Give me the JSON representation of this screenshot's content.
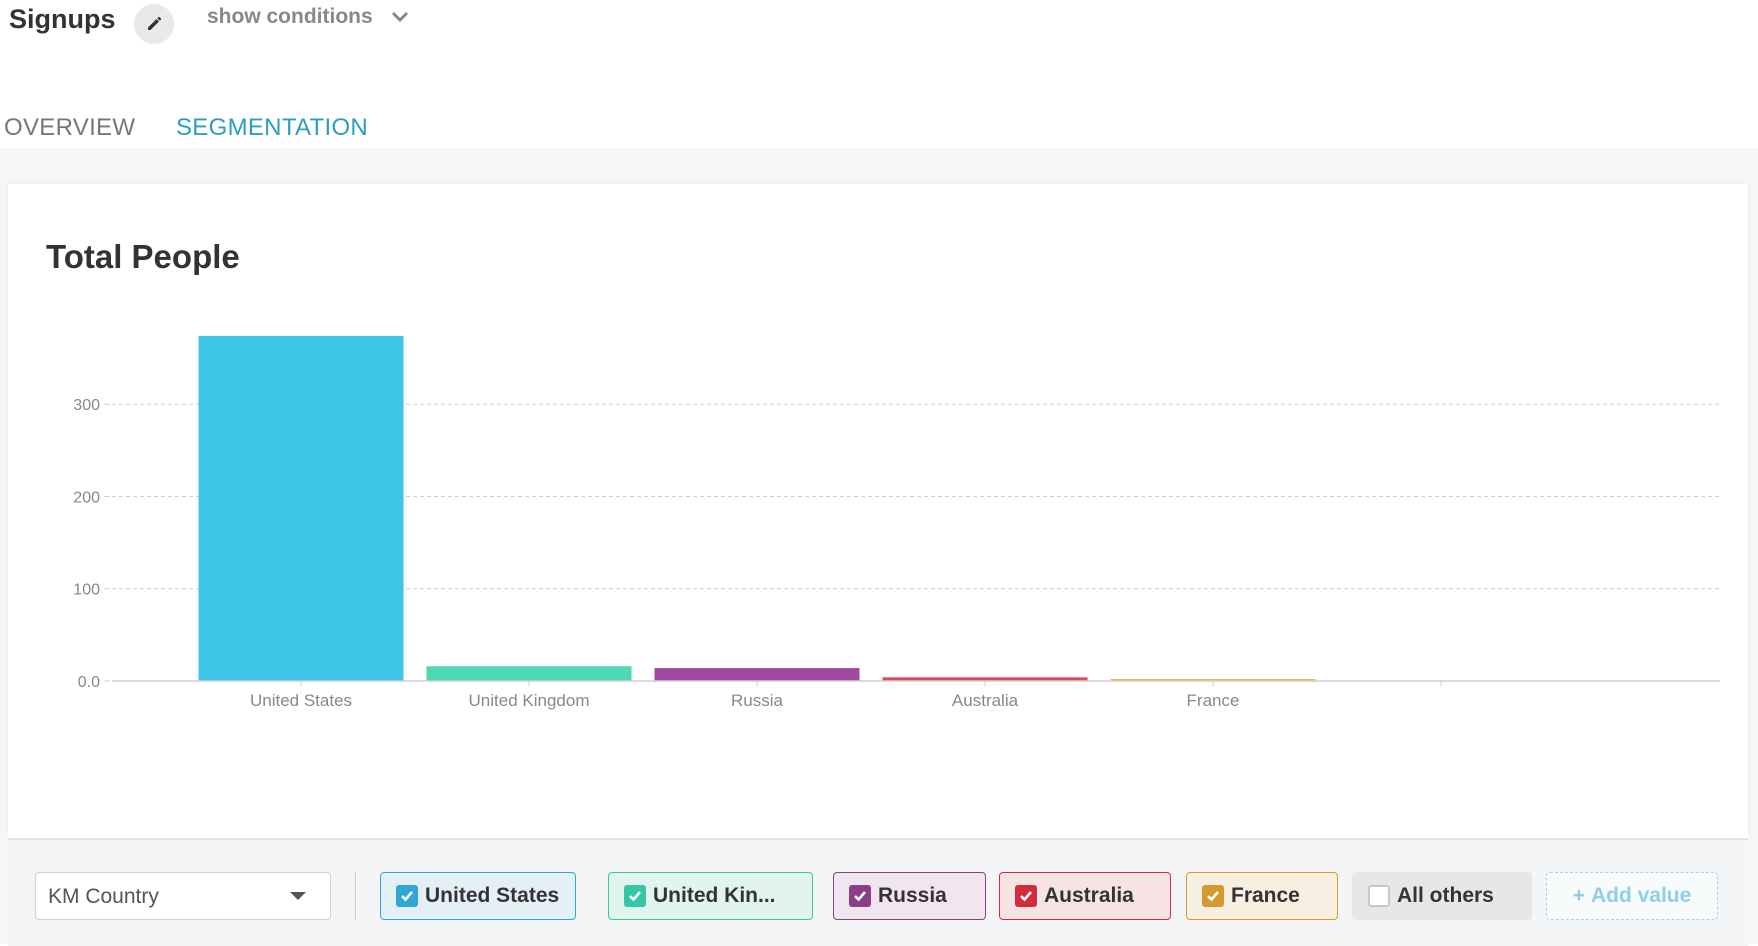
{
  "header": {
    "title": "Signups",
    "conditions_label": "show conditions"
  },
  "tabs": [
    {
      "label": "OVERVIEW",
      "active": false
    },
    {
      "label": "SEGMENTATION",
      "active": true
    }
  ],
  "card": {
    "title": "Total People"
  },
  "chart_data": {
    "type": "bar",
    "title": "Total People",
    "categories": [
      "United States",
      "United Kingdom",
      "Russia",
      "Australia",
      "France"
    ],
    "values": [
      374,
      16,
      14,
      4,
      1
    ],
    "colors": [
      "#3ec4e6",
      "#4fd8b5",
      "#a2489e",
      "#e04a57",
      "#f1b545"
    ],
    "yticks": [
      "0.0",
      "100",
      "200",
      "300"
    ],
    "ylim": [
      0,
      375
    ],
    "grid": true,
    "xlabel": "",
    "ylabel": ""
  },
  "footer": {
    "segment_select": "KM Country",
    "chips": [
      {
        "label": "United States",
        "checked": true,
        "color": "#2fa9d4",
        "bg": "#e3f1f7"
      },
      {
        "label": "United Kin...",
        "checked": true,
        "color": "#33c7a4",
        "bg": "#e2f4ee"
      },
      {
        "label": "Russia",
        "checked": true,
        "color": "#8b3f88",
        "bg": "#f1e6f0"
      },
      {
        "label": "Australia",
        "checked": true,
        "color": "#d12c3a",
        "bg": "#f7e3e4"
      },
      {
        "label": "France",
        "checked": true,
        "color": "#d49a2f",
        "bg": "#f7efe0"
      },
      {
        "label": "All others",
        "checked": false,
        "color": "#c8c8c8",
        "bg": "#e6e7e8"
      }
    ],
    "add_value_label": "Add value"
  }
}
